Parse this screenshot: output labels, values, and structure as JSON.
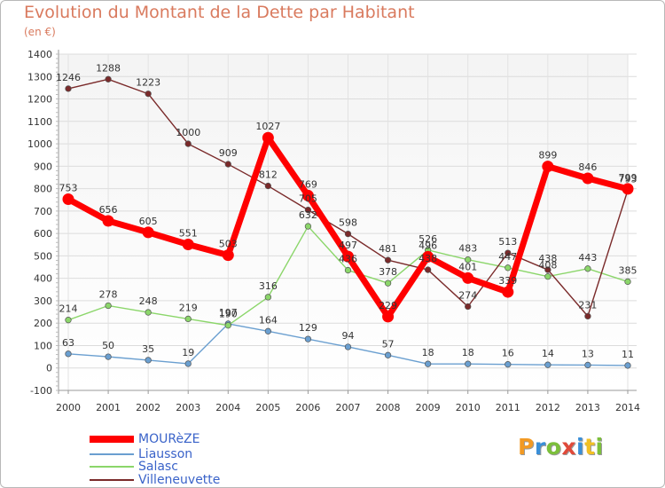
{
  "header": {
    "title": "Evolution du Montant de la Dette par Habitant",
    "unit": "(en €)"
  },
  "logo": {
    "text": "Proxiti",
    "colors": [
      "#f29a24",
      "#3a8fd8",
      "#7cbf3b",
      "#e04a3a",
      "#3a8fd8",
      "#f2c024",
      "#7cbf3b"
    ]
  },
  "chart_data": {
    "type": "line",
    "title": "Evolution du Montant de la Dette par Habitant",
    "subtitle": "(en €)",
    "xlabel": "",
    "ylabel": "",
    "ylim": [
      -100,
      1400
    ],
    "yticks": [
      -100,
      0,
      100,
      200,
      300,
      400,
      500,
      600,
      700,
      800,
      900,
      1000,
      1100,
      1200,
      1300,
      1400
    ],
    "grid": true,
    "legend_position": "bottom-left",
    "x": [
      "2000",
      "2001",
      "2002",
      "2003",
      "2004",
      "2005",
      "2006",
      "2007",
      "2008",
      "2009",
      "2010",
      "2011",
      "2012",
      "2013",
      "2014"
    ],
    "series": [
      {
        "name": "MOURèZE",
        "color": "#ff0000",
        "values": [
          753,
          656,
          605,
          551,
          503,
          1027,
          769,
          497,
          229,
          496,
          401,
          339,
          899,
          846,
          799
        ]
      },
      {
        "name": "Liausson",
        "color": "#6a9fd0",
        "values": [
          63,
          50,
          35,
          19,
          197,
          164,
          129,
          94,
          57,
          18,
          18,
          16,
          14,
          13,
          11
        ]
      },
      {
        "name": "Salasc",
        "color": "#8bd66a",
        "values": [
          214,
          278,
          248,
          219,
          190,
          316,
          632,
          436,
          378,
          526,
          483,
          447,
          408,
          443,
          385
        ]
      },
      {
        "name": "Villeneuvette",
        "color": "#7a2a2a",
        "values": [
          1246,
          1288,
          1223,
          1000,
          909,
          812,
          705,
          598,
          481,
          438,
          274,
          513,
          438,
          231,
          793
        ]
      }
    ]
  }
}
